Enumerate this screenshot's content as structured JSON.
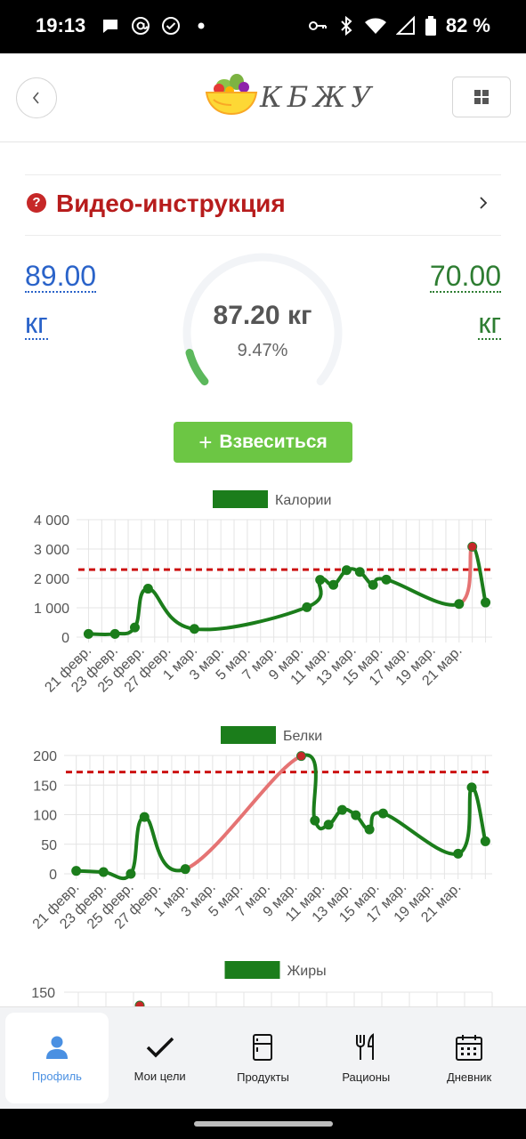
{
  "status_bar": {
    "time": "19:13",
    "battery": "82 %",
    "left_icons": [
      "chat-icon",
      "at-icon",
      "check-circle-icon",
      "dot-icon"
    ],
    "right_icons": [
      "key-icon",
      "bluetooth-icon",
      "wifi-icon",
      "signal-icon",
      "battery-icon"
    ]
  },
  "header": {
    "logo_text": "КБЖУ",
    "back_icon": "chevron-left-icon",
    "menu_icon": "grid-icon"
  },
  "video": {
    "title": "Видео-инструкция",
    "icon": "question-circle-icon",
    "chevron": "chevron-right-icon",
    "color": "#b71c1c"
  },
  "weight": {
    "start_value": "89.00",
    "start_unit": "кг",
    "goal_value": "70.00",
    "goal_unit": "кг",
    "current": "87.20 кг",
    "progress_text": "9.47%",
    "progress": 0.0947,
    "start_color": "#2a63c9",
    "goal_color": "#2e7d32",
    "gauge_color": "#5cb85c"
  },
  "weigh_button": {
    "label": "Взвеситься",
    "icon": "plus-icon",
    "color": "#6cc644"
  },
  "chart_data": [
    {
      "type": "line",
      "legend": "Калории",
      "categories": [
        "21 февр.",
        "23 февр.",
        "25 февр.",
        "27 февр.",
        "1 мар.",
        "3 мар.",
        "5 мар.",
        "7 мар.",
        "9 мар.",
        "11 мар.",
        "13 мар.",
        "15 мар.",
        "17 мар.",
        "19 мар.",
        "21 мар."
      ],
      "x": [
        0,
        2,
        3.5,
        4.5,
        8,
        16.5,
        17.5,
        18.5,
        19.5,
        20.5,
        21.5,
        22.5,
        28,
        29,
        30
      ],
      "values": [
        110,
        110,
        330,
        1650,
        280,
        1020,
        1950,
        1780,
        2280,
        2220,
        1780,
        1960,
        1130,
        3080,
        1180
      ],
      "target": 2300,
      "ylim": [
        0,
        4000
      ],
      "yticks": [
        0,
        1000,
        2000,
        3000,
        4000
      ],
      "ytick_labels": [
        "0",
        "1 000",
        "2 000",
        "3 000",
        "4 000"
      ],
      "xlim": [
        -0.5,
        30.5
      ],
      "color": "#1b7d1b",
      "over_color": "#e57373",
      "target_color": "#cc1111"
    },
    {
      "type": "line",
      "legend": "Белки",
      "categories": [
        "21 февр.",
        "23 февр.",
        "25 февр.",
        "27 февр.",
        "1 мар.",
        "3 мар.",
        "5 мар.",
        "7 мар.",
        "9 мар.",
        "11 мар.",
        "13 мар.",
        "15 мар.",
        "17 мар.",
        "19 мар.",
        "21 мар."
      ],
      "x": [
        0,
        2,
        4,
        5,
        8,
        16.5,
        17.5,
        18.5,
        19.5,
        20.5,
        21.5,
        22.5,
        28,
        29,
        30
      ],
      "values": [
        5,
        3,
        0,
        96,
        8,
        199,
        90,
        83,
        108,
        99,
        75,
        102,
        34,
        146,
        55
      ],
      "target": 172,
      "ylim": [
        0,
        200
      ],
      "yticks": [
        0,
        50,
        100,
        150,
        200
      ],
      "ytick_labels": [
        "0",
        "50",
        "100",
        "150",
        "200"
      ],
      "xlim": [
        -0.5,
        30.5
      ],
      "color": "#1b7d1b",
      "over_color": "#e57373",
      "target_color": "#cc1111"
    },
    {
      "type": "line",
      "legend": "Жиры",
      "ytick_labels": [
        "150"
      ],
      "ylim": [
        0,
        150
      ],
      "color": "#1b7d1b"
    }
  ],
  "nav": {
    "items": [
      {
        "label": "Профиль",
        "icon": "person-icon",
        "active": true
      },
      {
        "label": "Мои цели",
        "icon": "checkmark-icon",
        "active": false
      },
      {
        "label": "Продукты",
        "icon": "fridge-icon",
        "active": false
      },
      {
        "label": "Рационы",
        "icon": "fork-knife-icon",
        "active": false
      },
      {
        "label": "Дневник",
        "icon": "calendar-icon",
        "active": false
      }
    ]
  }
}
